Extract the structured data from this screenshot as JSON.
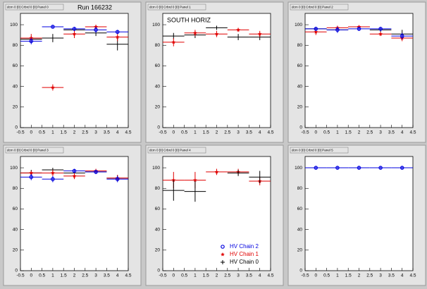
{
  "chart_data": [
    {
      "type": "scatter",
      "title": "dcm 0 [0] Crbrd 0 [0] Panel 0",
      "annotation": "Run 166232",
      "x": [
        0,
        1,
        2,
        3,
        4
      ],
      "xlim": [
        -0.5,
        4.5
      ],
      "xticks": [
        -0.5,
        0,
        0.5,
        1,
        1.5,
        2,
        2.5,
        3,
        3.5,
        4,
        4.5
      ],
      "ylim": [
        0,
        111
      ],
      "yticks": [
        0,
        20,
        40,
        60,
        80,
        100
      ],
      "series": [
        {
          "color": "#000000",
          "marker": "plus",
          "values": [
            86,
            87,
            95,
            92,
            81
          ],
          "errors": [
            3,
            4,
            3,
            3,
            6
          ]
        },
        {
          "color": "#e00000",
          "marker": "star",
          "values": [
            87,
            39,
            91,
            98,
            88
          ],
          "errors": [
            4,
            3,
            4,
            2,
            4
          ]
        },
        {
          "color": "#0000e0",
          "marker": "circle",
          "values": [
            84,
            98,
            96,
            95,
            93
          ],
          "errors": [
            3,
            1,
            2,
            3,
            2
          ]
        }
      ]
    },
    {
      "type": "scatter",
      "title": "dcm 0 [0] Crbrd 0 [0] Panel 1",
      "annotation": "SOUTH HORIZ",
      "x": [
        0,
        1,
        2,
        3,
        4
      ],
      "xlim": [
        -0.5,
        4.5
      ],
      "xticks": [
        -0.5,
        0,
        0.5,
        1,
        1.5,
        2,
        2.5,
        3,
        3.5,
        4,
        4.5
      ],
      "ylim": [
        0,
        111
      ],
      "yticks": [
        0,
        20,
        40,
        60,
        80,
        100
      ],
      "series": [
        {
          "color": "#000000",
          "marker": "plus",
          "values": [
            89,
            90,
            97,
            88,
            88
          ],
          "errors": [
            3,
            3,
            2,
            3,
            3
          ]
        },
        {
          "color": "#e00000",
          "marker": "star",
          "values": [
            83,
            92,
            91,
            95,
            91
          ],
          "errors": [
            4,
            3,
            3,
            2,
            3
          ]
        }
      ]
    },
    {
      "type": "scatter",
      "title": "dcm 0 [0] Crbrd 0 [0] Panel 2",
      "x": [
        0,
        1,
        2,
        3,
        4
      ],
      "xlim": [
        -0.5,
        4.5
      ],
      "xticks": [
        -0.5,
        0,
        0.5,
        1,
        1.5,
        2,
        2.5,
        3,
        3.5,
        4,
        4.5
      ],
      "ylim": [
        0,
        111
      ],
      "yticks": [
        0,
        20,
        40,
        60,
        80,
        100
      ],
      "series": [
        {
          "color": "#000000",
          "marker": "plus",
          "values": [
            96,
            95,
            98,
            95,
            91
          ],
          "errors": [
            2,
            2,
            1,
            2,
            4
          ]
        },
        {
          "color": "#e00000",
          "marker": "star",
          "values": [
            93,
            97,
            98,
            91,
            87
          ],
          "errors": [
            3,
            2,
            1,
            2,
            3
          ]
        },
        {
          "color": "#0000e0",
          "marker": "circle",
          "values": [
            96,
            95,
            96,
            96,
            89
          ],
          "errors": [
            2,
            3,
            2,
            2,
            3
          ]
        }
      ]
    },
    {
      "type": "scatter",
      "title": "dcm 0 [0] Crbrd 0 [0] Panel 3",
      "x": [
        0,
        1,
        2,
        3,
        4
      ],
      "xlim": [
        -0.5,
        4.5
      ],
      "xticks": [
        -0.5,
        0,
        0.5,
        1,
        1.5,
        2,
        2.5,
        3,
        3.5,
        4,
        4.5
      ],
      "ylim": [
        0,
        111
      ],
      "yticks": [
        0,
        20,
        40,
        60,
        80,
        100
      ],
      "series": [
        {
          "color": "#000000",
          "marker": "plus",
          "values": [
            95,
            98,
            95,
            96,
            90
          ],
          "errors": [
            3,
            2,
            2,
            2,
            3
          ]
        },
        {
          "color": "#e00000",
          "marker": "star",
          "values": [
            95,
            95,
            92,
            97,
            90
          ],
          "errors": [
            2,
            3,
            3,
            2,
            3
          ]
        },
        {
          "color": "#0000e0",
          "marker": "circle",
          "values": [
            91,
            89,
            97,
            96,
            89
          ],
          "errors": [
            3,
            3,
            2,
            2,
            3
          ]
        }
      ]
    },
    {
      "type": "scatter",
      "title": "dcm 0 [0] Crbrd 0 [0] Panel 4",
      "legend": "lower right",
      "x": [
        0,
        1,
        2,
        3,
        4
      ],
      "xlim": [
        -0.5,
        4.5
      ],
      "xticks": [
        -0.5,
        0,
        0.5,
        1,
        1.5,
        2,
        2.5,
        3,
        3.5,
        4,
        4.5
      ],
      "ylim": [
        0,
        111
      ],
      "yticks": [
        0,
        20,
        40,
        60,
        80,
        100
      ],
      "series": [
        {
          "name": "HV Chain 2",
          "color": "#0000e0",
          "marker": "circle",
          "values": [
            null,
            null,
            null,
            null,
            null
          ],
          "errors": [
            null,
            null,
            null,
            null,
            null
          ]
        },
        {
          "name": "HV Chain 1",
          "color": "#e00000",
          "marker": "star",
          "values": [
            88,
            88,
            96,
            96,
            87
          ],
          "errors": [
            8,
            8,
            3,
            3,
            4
          ]
        },
        {
          "name": "HV Chain 0",
          "color": "#000000",
          "marker": "plus",
          "values": [
            78,
            77,
            null,
            95,
            91
          ],
          "errors": [
            10,
            10,
            null,
            3,
            6
          ]
        }
      ]
    },
    {
      "type": "scatter",
      "title": "dcm 0 [0] Crbrd 0 [0] Panel 5",
      "x": [
        0,
        1,
        2,
        3,
        4
      ],
      "xlim": [
        -0.5,
        4.5
      ],
      "xticks": [
        -0.5,
        0,
        0.5,
        1,
        1.5,
        2,
        2.5,
        3,
        3.5,
        4,
        4.5
      ],
      "ylim": [
        0,
        111
      ],
      "yticks": [
        0,
        20,
        40,
        60,
        80,
        100
      ],
      "series": [
        {
          "color": "#0000e0",
          "marker": "circle",
          "values": [
            100,
            100,
            100,
            100,
            100
          ],
          "errors": [
            1,
            1,
            1,
            1,
            1
          ]
        }
      ]
    }
  ]
}
